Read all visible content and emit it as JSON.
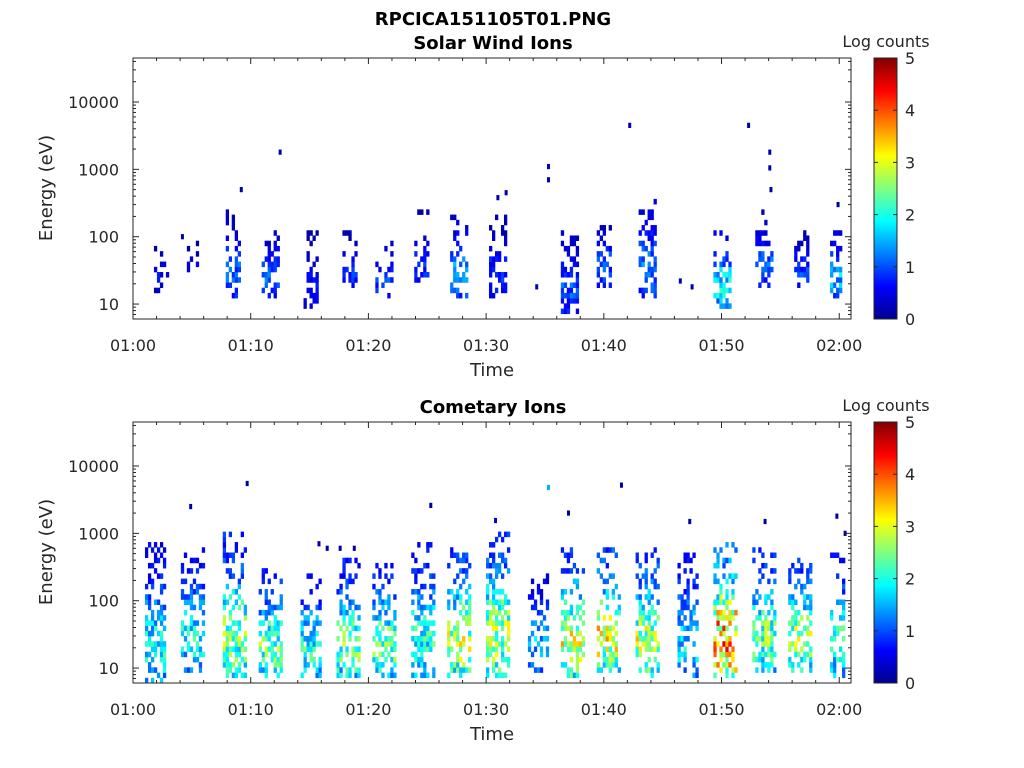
{
  "figure_title": "RPCICA151105T01.PNG",
  "colors": {
    "colormap": "jet",
    "background": "#ffffff",
    "axis": "#262626"
  },
  "chart_data": [
    {
      "type": "heatmap",
      "title": "Solar Wind Ions",
      "xlabel": "Time",
      "ylabel": "Energy (eV)",
      "x_tick_labels": [
        "01:00",
        "01:10",
        "01:20",
        "01:30",
        "01:40",
        "01:50",
        "02:00"
      ],
      "x_ticks_min": [
        0,
        10,
        20,
        30,
        40,
        50,
        60
      ],
      "xlim_min": [
        0,
        61
      ],
      "y_scale": "log",
      "y_tick_labels": [
        "10",
        "100",
        "1000",
        "10000"
      ],
      "y_ticks": [
        10,
        100,
        1000,
        10000
      ],
      "ylim": [
        6,
        45000
      ],
      "colorbar": {
        "label": "Log counts",
        "ticks": [
          "0",
          "1",
          "2",
          "3",
          "4",
          "5"
        ],
        "range": [
          0,
          5
        ]
      },
      "grid": false,
      "bursts": [
        {
          "t": 2.2,
          "w": 0.8,
          "lo": 17,
          "hi": 70,
          "level": 0.6,
          "density": 0.5
        },
        {
          "t": 5.0,
          "w": 0.6,
          "lo": 28,
          "hi": 70,
          "level": 0.5,
          "density": 0.4
        },
        {
          "t": 8.3,
          "w": 0.8,
          "lo": 14,
          "hi": 180,
          "level": 1.1,
          "density": 0.55
        },
        {
          "t": 11.5,
          "w": 1.0,
          "lo": 14,
          "hi": 90,
          "level": 1.1,
          "density": 0.6
        },
        {
          "t": 15.0,
          "w": 1.0,
          "lo": 10,
          "hi": 90,
          "level": 0.6,
          "density": 0.5
        },
        {
          "t": 18.3,
          "w": 0.8,
          "lo": 18,
          "hi": 90,
          "level": 0.8,
          "density": 0.55
        },
        {
          "t": 21.3,
          "w": 1.0,
          "lo": 14,
          "hi": 70,
          "level": 0.9,
          "density": 0.5
        },
        {
          "t": 24.5,
          "w": 0.8,
          "lo": 18,
          "hi": 200,
          "level": 0.8,
          "density": 0.5
        },
        {
          "t": 27.6,
          "w": 1.0,
          "lo": 14,
          "hi": 160,
          "level": 1.3,
          "density": 0.55
        },
        {
          "t": 30.8,
          "w": 1.0,
          "lo": 14,
          "hi": 160,
          "level": 0.8,
          "density": 0.55
        },
        {
          "t": 37.0,
          "w": 1.0,
          "lo": 8,
          "hi": 100,
          "level": 1.0,
          "density": 0.55
        },
        {
          "t": 40.0,
          "w": 0.8,
          "lo": 20,
          "hi": 160,
          "level": 1.0,
          "density": 0.55
        },
        {
          "t": 43.5,
          "w": 1.0,
          "lo": 14,
          "hi": 280,
          "level": 1.2,
          "density": 0.6
        },
        {
          "t": 50.0,
          "w": 1.0,
          "lo": 10,
          "hi": 90,
          "level": 1.8,
          "density": 0.6
        },
        {
          "t": 53.5,
          "w": 0.8,
          "lo": 20,
          "hi": 200,
          "level": 1.0,
          "density": 0.55
        },
        {
          "t": 56.7,
          "w": 0.9,
          "lo": 16,
          "hi": 100,
          "level": 0.9,
          "density": 0.55
        },
        {
          "t": 59.7,
          "w": 0.5,
          "lo": 14,
          "hi": 90,
          "level": 1.5,
          "density": 0.5
        }
      ],
      "sparse_points": [
        {
          "t": 12.5,
          "e": 1800,
          "level": 0.2
        },
        {
          "t": 9.2,
          "e": 500,
          "level": 0.2
        },
        {
          "t": 42.2,
          "e": 4500,
          "level": 0.2
        },
        {
          "t": 52.3,
          "e": 4500,
          "level": 0.2
        },
        {
          "t": 35.3,
          "e": 1100,
          "level": 0.3
        },
        {
          "t": 35.3,
          "e": 700,
          "level": 0.3
        },
        {
          "t": 54.1,
          "e": 1800,
          "level": 0.2
        },
        {
          "t": 54.1,
          "e": 1050,
          "level": 0.2
        },
        {
          "t": 54.2,
          "e": 500,
          "level": 0.2
        },
        {
          "t": 31.0,
          "e": 380,
          "level": 0.2
        },
        {
          "t": 31.7,
          "e": 450,
          "level": 0.2
        },
        {
          "t": 59.9,
          "e": 300,
          "level": 0.2
        },
        {
          "t": 4.2,
          "e": 100,
          "level": 0.2
        },
        {
          "t": 34.3,
          "e": 18,
          "level": 0.3
        },
        {
          "t": 46.5,
          "e": 22,
          "level": 0.3
        },
        {
          "t": 47.5,
          "e": 18,
          "level": 0.2
        }
      ]
    },
    {
      "type": "heatmap",
      "title": "Cometary Ions",
      "xlabel": "Time",
      "ylabel": "Energy (eV)",
      "x_tick_labels": [
        "01:00",
        "01:10",
        "01:20",
        "01:30",
        "01:40",
        "01:50",
        "02:00"
      ],
      "x_ticks_min": [
        0,
        10,
        20,
        30,
        40,
        50,
        60
      ],
      "xlim_min": [
        0,
        61
      ],
      "y_scale": "log",
      "y_tick_labels": [
        "10",
        "100",
        "1000",
        "10000"
      ],
      "y_ticks": [
        10,
        100,
        1000,
        10000
      ],
      "ylim": [
        6,
        45000
      ],
      "colorbar": {
        "label": "Log counts",
        "ticks": [
          "0",
          "1",
          "2",
          "3",
          "4",
          "5"
        ],
        "range": [
          0,
          5
        ]
      },
      "grid": false,
      "bursts": [
        {
          "t": 1.8,
          "w": 1.2,
          "lo": 6,
          "hi": 550,
          "level": 1.8,
          "density": 0.6
        },
        {
          "t": 5.0,
          "w": 1.6,
          "lo": 10,
          "hi": 450,
          "level": 1.8,
          "density": 0.55
        },
        {
          "t": 8.5,
          "w": 1.6,
          "lo": 8,
          "hi": 800,
          "level": 2.4,
          "density": 0.65
        },
        {
          "t": 11.6,
          "w": 1.6,
          "lo": 8,
          "hi": 250,
          "level": 2.3,
          "density": 0.65
        },
        {
          "t": 15.0,
          "w": 1.4,
          "lo": 8,
          "hi": 200,
          "level": 2.0,
          "density": 0.6
        },
        {
          "t": 18.2,
          "w": 1.4,
          "lo": 8,
          "hi": 320,
          "level": 2.3,
          "density": 0.6
        },
        {
          "t": 21.3,
          "w": 1.6,
          "lo": 8,
          "hi": 320,
          "level": 2.3,
          "density": 0.6
        },
        {
          "t": 24.5,
          "w": 1.6,
          "lo": 8,
          "hi": 550,
          "level": 2.0,
          "density": 0.6
        },
        {
          "t": 27.6,
          "w": 1.5,
          "lo": 8,
          "hi": 500,
          "level": 2.7,
          "density": 0.6
        },
        {
          "t": 30.8,
          "w": 1.6,
          "lo": 8,
          "hi": 900,
          "level": 2.6,
          "density": 0.65
        },
        {
          "t": 34.3,
          "w": 1.4,
          "lo": 10,
          "hi": 200,
          "level": 1.5,
          "density": 0.5
        },
        {
          "t": 37.3,
          "w": 1.5,
          "lo": 8,
          "hi": 500,
          "level": 2.8,
          "density": 0.6
        },
        {
          "t": 40.3,
          "w": 1.6,
          "lo": 10,
          "hi": 450,
          "level": 2.9,
          "density": 0.6
        },
        {
          "t": 43.5,
          "w": 1.6,
          "lo": 8,
          "hi": 450,
          "level": 2.7,
          "density": 0.65
        },
        {
          "t": 47.0,
          "w": 1.4,
          "lo": 8,
          "hi": 450,
          "level": 1.7,
          "density": 0.5
        },
        {
          "t": 50.2,
          "w": 1.6,
          "lo": 8,
          "hi": 600,
          "level": 3.6,
          "density": 0.65
        },
        {
          "t": 53.5,
          "w": 1.5,
          "lo": 10,
          "hi": 450,
          "level": 2.4,
          "density": 0.6
        },
        {
          "t": 56.6,
          "w": 1.5,
          "lo": 10,
          "hi": 350,
          "level": 2.6,
          "density": 0.6
        },
        {
          "t": 59.8,
          "w": 0.8,
          "lo": 8,
          "hi": 400,
          "level": 2.0,
          "density": 0.55
        }
      ],
      "sparse_points": [
        {
          "t": 9.7,
          "e": 5500,
          "level": 0.2
        },
        {
          "t": 4.9,
          "e": 2500,
          "level": 0.2
        },
        {
          "t": 25.3,
          "e": 2600,
          "level": 0.2
        },
        {
          "t": 35.3,
          "e": 4800,
          "level": 1.5
        },
        {
          "t": 37.0,
          "e": 2000,
          "level": 0.2
        },
        {
          "t": 41.5,
          "e": 5200,
          "level": 0.2
        },
        {
          "t": 47.3,
          "e": 1500,
          "level": 0.2
        },
        {
          "t": 53.7,
          "e": 1500,
          "level": 0.2
        },
        {
          "t": 30.8,
          "e": 1550,
          "level": 0.3
        },
        {
          "t": 59.8,
          "e": 1800,
          "level": 0.2
        },
        {
          "t": 60.5,
          "e": 1000,
          "level": 0.2
        },
        {
          "t": 15.8,
          "e": 700,
          "level": 0.2
        },
        {
          "t": 16.5,
          "e": 600,
          "level": 0.2
        },
        {
          "t": 17.6,
          "e": 600,
          "level": 0.2
        },
        {
          "t": 18.8,
          "e": 600,
          "level": 0.2
        }
      ]
    }
  ]
}
